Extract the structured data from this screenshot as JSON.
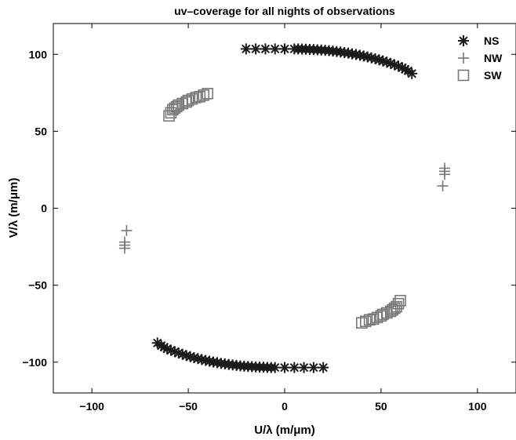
{
  "chart_data": {
    "type": "scatter",
    "title": "uv–coverage for all nights of observations",
    "xlabel": "U/λ (m/μm)",
    "ylabel": "V/λ (m/μm)",
    "xlim": [
      -120,
      120
    ],
    "ylim": [
      -120,
      120
    ],
    "xticks": [
      -100,
      -50,
      0,
      50,
      100
    ],
    "yticks": [
      -100,
      -50,
      0,
      50,
      100
    ],
    "xtick_labels": [
      "−100",
      "−50",
      "0",
      "50",
      "100"
    ],
    "ytick_labels": [
      "−100",
      "−50",
      "0",
      "50",
      "100"
    ],
    "grid": false,
    "legend_position": "top-right",
    "series": [
      {
        "name": "NS",
        "marker": "asterisk",
        "color": "#1a1a1a",
        "points": [
          [
            -20,
            103.5
          ],
          [
            -15,
            103.5
          ],
          [
            -10,
            103.5
          ],
          [
            -5,
            103.5
          ],
          [
            0,
            103.5
          ],
          [
            5,
            103.5
          ],
          [
            7,
            103.5
          ],
          [
            9,
            103.4
          ],
          [
            11,
            103.3
          ],
          [
            13,
            103.2
          ],
          [
            15,
            103.1
          ],
          [
            17,
            102.9
          ],
          [
            19,
            102.8
          ],
          [
            21,
            102.6
          ],
          [
            23,
            102.4
          ],
          [
            25,
            102.1
          ],
          [
            27,
            101.8
          ],
          [
            29,
            101.5
          ],
          [
            31,
            101.1
          ],
          [
            33,
            100.8
          ],
          [
            35,
            100.3
          ],
          [
            37,
            99.9
          ],
          [
            39,
            99.4
          ],
          [
            41,
            98.9
          ],
          [
            43,
            98.3
          ],
          [
            45,
            97.7
          ],
          [
            47,
            97.1
          ],
          [
            49,
            96.4
          ],
          [
            51,
            95.7
          ],
          [
            53,
            94.9
          ],
          [
            55,
            94.1
          ],
          [
            57,
            93.2
          ],
          [
            59,
            92.3
          ],
          [
            61,
            91.3
          ],
          [
            62.5,
            90.3
          ],
          [
            64,
            89.3
          ],
          [
            66,
            87.5
          ],
          [
            20,
            -103.5
          ],
          [
            15,
            -103.5
          ],
          [
            10,
            -103.5
          ],
          [
            5,
            -103.5
          ],
          [
            0,
            -103.5
          ],
          [
            -5,
            -103.5
          ],
          [
            -7,
            -103.5
          ],
          [
            -9,
            -103.4
          ],
          [
            -11,
            -103.3
          ],
          [
            -13,
            -103.2
          ],
          [
            -15,
            -103.1
          ],
          [
            -17,
            -102.9
          ],
          [
            -19,
            -102.8
          ],
          [
            -21,
            -102.6
          ],
          [
            -23,
            -102.4
          ],
          [
            -25,
            -102.1
          ],
          [
            -27,
            -101.8
          ],
          [
            -29,
            -101.5
          ],
          [
            -31,
            -101.1
          ],
          [
            -33,
            -100.8
          ],
          [
            -35,
            -100.3
          ],
          [
            -37,
            -99.9
          ],
          [
            -39,
            -99.4
          ],
          [
            -41,
            -98.9
          ],
          [
            -43,
            -98.3
          ],
          [
            -45,
            -97.7
          ],
          [
            -47,
            -97.1
          ],
          [
            -49,
            -96.4
          ],
          [
            -51,
            -95.7
          ],
          [
            -53,
            -94.9
          ],
          [
            -55,
            -94.1
          ],
          [
            -57,
            -93.2
          ],
          [
            -59,
            -92.3
          ],
          [
            -61,
            -91.3
          ],
          [
            -62.5,
            -90.3
          ],
          [
            -64,
            -89.3
          ],
          [
            -66,
            -87.5
          ]
        ]
      },
      {
        "name": "NW",
        "marker": "plus",
        "color": "#777777",
        "points": [
          [
            83,
            26
          ],
          [
            83,
            24
          ],
          [
            83,
            22
          ],
          [
            82,
            14.5
          ],
          [
            -83,
            -26
          ],
          [
            -83,
            -24
          ],
          [
            -83,
            -22
          ],
          [
            -82,
            -14.5
          ]
        ]
      },
      {
        "name": "SW",
        "marker": "square",
        "color": "#777777",
        "points": [
          [
            -60,
            60
          ],
          [
            -59,
            62
          ],
          [
            -58,
            64
          ],
          [
            -57,
            65
          ],
          [
            -56,
            66
          ],
          [
            -55,
            67
          ],
          [
            -53,
            68
          ],
          [
            -51,
            69
          ],
          [
            -50,
            70
          ],
          [
            -48,
            71
          ],
          [
            -46,
            72
          ],
          [
            -44,
            72.5
          ],
          [
            -42,
            73.5
          ],
          [
            -40,
            74.5
          ],
          [
            60,
            -60
          ],
          [
            59,
            -62
          ],
          [
            58,
            -64
          ],
          [
            57,
            -65
          ],
          [
            56,
            -66
          ],
          [
            55,
            -67
          ],
          [
            53,
            -68
          ],
          [
            51,
            -69
          ],
          [
            50,
            -70
          ],
          [
            48,
            -71
          ],
          [
            46,
            -72
          ],
          [
            44,
            -72.5
          ],
          [
            42,
            -73.5
          ],
          [
            40,
            -74.5
          ]
        ]
      }
    ]
  }
}
